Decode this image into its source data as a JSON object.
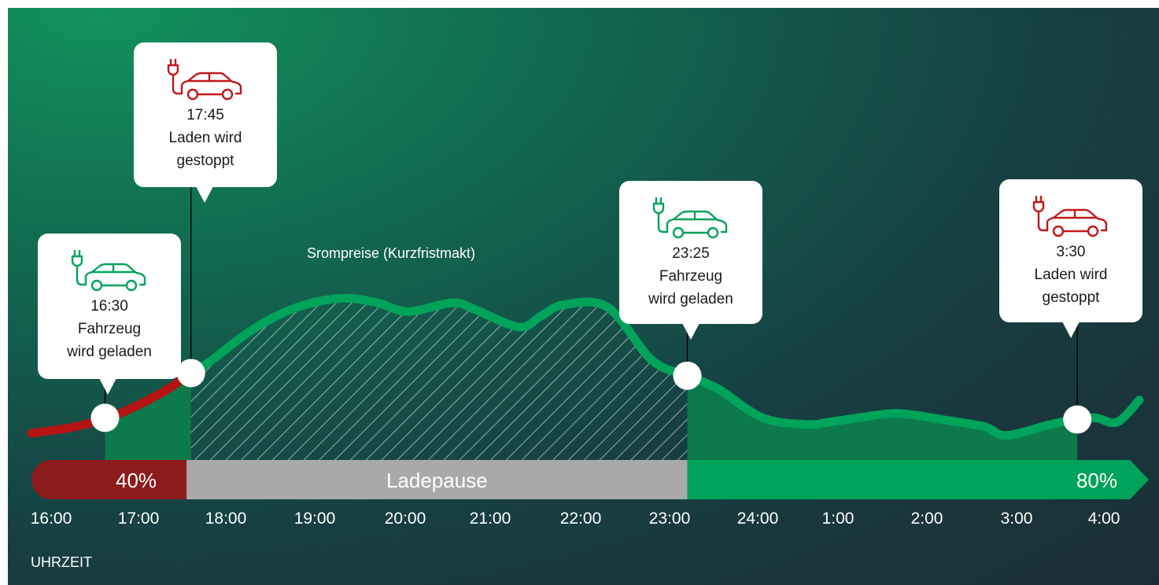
{
  "title": "",
  "axis_title": "UHRZEIT",
  "price_label": "Srompreise (Kurzfristmakt)",
  "colors": {
    "red": "#b51414",
    "green": "#00a35a",
    "pause": "#a9a9a9",
    "dark_red": "#8c1b1b",
    "area_green": "#0c7a4b"
  },
  "bar": {
    "start_label": "40%",
    "pause_label": "Ladepause",
    "end_label": "80%"
  },
  "events": [
    {
      "time": "16:30",
      "line1": "Fahrzeug",
      "line2": "wird geladen",
      "icon": "ev-car-charging-icon",
      "color": "green"
    },
    {
      "time": "17:45",
      "line1": "Laden wird",
      "line2": "gestoppt",
      "icon": "ev-car-stopped-icon",
      "color": "red"
    },
    {
      "time": "23:25",
      "line1": "Fahrzeug",
      "line2": "wird geladen",
      "icon": "ev-car-charging-icon",
      "color": "green"
    },
    {
      "time": "3:30",
      "line1": "Laden wird",
      "line2": "gestoppt",
      "icon": "ev-car-stopped-icon",
      "color": "red"
    }
  ],
  "chart_data": {
    "type": "area",
    "x_ticks": [
      "16:00",
      "17:00",
      "18:00",
      "19:00",
      "20:00",
      "21:00",
      "22:00",
      "23:00",
      "24:00",
      "1:00",
      "2:00",
      "3:00",
      "4:00"
    ],
    "xlabel": "UHRZEIT",
    "series": [
      {
        "name": "Srompreise (Kurzfristmakt)",
        "x": [
          16.0,
          16.5,
          17.0,
          17.5,
          17.75,
          18.0,
          18.5,
          19.0,
          19.5,
          19.9,
          20.25,
          20.75,
          21.0,
          21.5,
          21.75,
          22.0,
          22.5,
          23.0,
          23.4,
          23.75,
          24.25,
          24.75,
          25.0,
          25.5,
          25.75,
          26.0,
          26.3,
          26.75,
          27.0,
          27.5,
          27.75,
          28.0,
          28.25,
          28.5
        ],
        "y": [
          0.5,
          0.8,
          1.4,
          2.4,
          3.1,
          3.7,
          5.2,
          6.2,
          6.6,
          6.4,
          6.0,
          6.4,
          6.1,
          5.3,
          5.8,
          6.3,
          6.2,
          3.8,
          3.1,
          2.5,
          1.2,
          0.9,
          1.0,
          1.3,
          1.4,
          1.3,
          1.1,
          0.8,
          0.4,
          0.9,
          1.1,
          1.2,
          1.0,
          2.0
        ]
      }
    ],
    "ylim": [
      0,
      8
    ],
    "segments": [
      {
        "label": "40%",
        "state": "charging",
        "x_start": 16.0,
        "x_end": 17.75
      },
      {
        "label": "Ladepause",
        "state": "pause",
        "x_start": 17.75,
        "x_end": 23.4
      },
      {
        "label": "80%",
        "state": "charging",
        "x_start": 23.4,
        "x_end": 28.5
      }
    ],
    "event_x": [
      16.83,
      17.8,
      23.4,
      27.8
    ],
    "grid": false,
    "legend": "none"
  }
}
